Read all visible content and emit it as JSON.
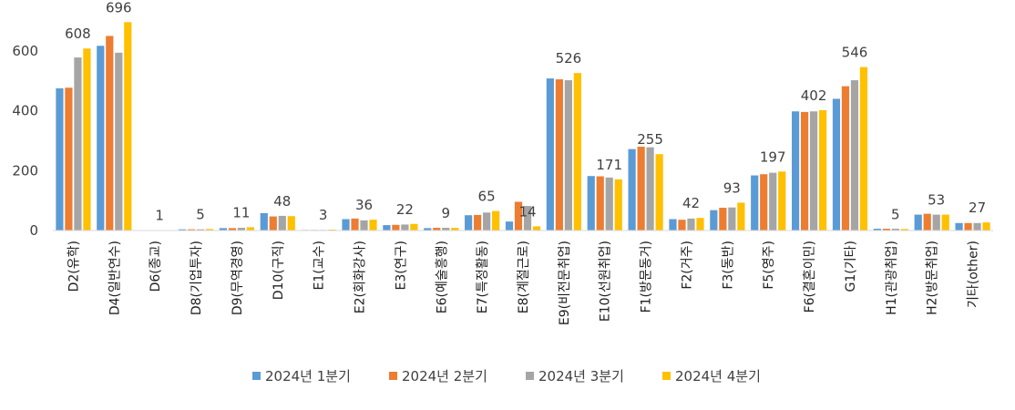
{
  "chart_data": {
    "type": "bar",
    "categories": [
      "D2(유학)",
      "D4(일반연수)",
      "D6(종교)",
      "D8(기업투자)",
      "D9(무역경영)",
      "D10(구직)",
      "E1(교수)",
      "E2(회화강사)",
      "E3(연구)",
      "E6(예술흥행)",
      "E7(특정활동)",
      "E8(계절근로)",
      "E9(비전문취업)",
      "E10(선원취업)",
      "F1(방문동거)",
      "F2(거주)",
      "F3(동반)",
      "F5(영주)",
      "F6(결혼이민)",
      "G1(기타)",
      "H1(관광취업)",
      "H2(방문취업)",
      "기타(other)"
    ],
    "series": [
      {
        "name": "2024년 1분기",
        "color": "#5B9BD5",
        "values": [
          475,
          617,
          1,
          4,
          8,
          58,
          2,
          38,
          18,
          8,
          51,
          30,
          508,
          182,
          272,
          38,
          68,
          184,
          398,
          440,
          6,
          53,
          25
        ]
      },
      {
        "name": "2024년 2분기",
        "color": "#ED7D31",
        "values": [
          477,
          650,
          1,
          4,
          8,
          47,
          2,
          40,
          19,
          9,
          52,
          96,
          505,
          181,
          280,
          36,
          76,
          188,
          396,
          482,
          6,
          56,
          25
        ]
      },
      {
        "name": "2024년 3분기",
        "color": "#A5A5A5",
        "values": [
          578,
          594,
          1,
          4,
          9,
          49,
          2,
          34,
          20,
          9,
          60,
          82,
          502,
          177,
          278,
          40,
          77,
          193,
          398,
          502,
          6,
          53,
          25
        ]
      },
      {
        "name": "2024년 4분기",
        "color": "#FFC000",
        "values": [
          608,
          696,
          1,
          5,
          11,
          48,
          3,
          36,
          22,
          9,
          65,
          14,
          526,
          171,
          255,
          42,
          93,
          197,
          402,
          546,
          5,
          53,
          27
        ]
      }
    ],
    "data_labels": [
      "608",
      "696",
      "1",
      "5",
      "11",
      "48",
      "3",
      "36",
      "22",
      "9",
      "65",
      "14",
      "526",
      "171",
      "255",
      "42",
      "93",
      "197",
      "402",
      "546",
      "5",
      "53",
      "27"
    ],
    "y_ticks": [
      "0",
      "200",
      "400",
      "600"
    ],
    "ylim": [
      0,
      700
    ],
    "grid": false,
    "legend_position": "bottom"
  }
}
